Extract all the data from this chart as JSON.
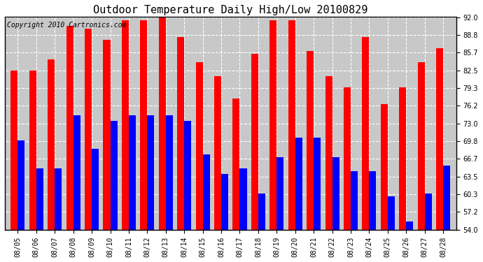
{
  "title": "Outdoor Temperature Daily High/Low 20100829",
  "copyright": "Copyright 2010 Cartronics.com",
  "dates": [
    "08/05",
    "08/06",
    "08/07",
    "08/08",
    "08/09",
    "08/10",
    "08/11",
    "08/12",
    "08/13",
    "08/14",
    "08/15",
    "08/16",
    "08/17",
    "08/18",
    "08/19",
    "08/20",
    "08/21",
    "08/22",
    "08/23",
    "08/24",
    "08/25",
    "08/26",
    "08/27",
    "08/28"
  ],
  "highs": [
    82.5,
    82.5,
    84.5,
    90.5,
    90.0,
    88.0,
    91.5,
    91.5,
    92.5,
    88.5,
    84.0,
    81.5,
    77.5,
    85.5,
    91.5,
    91.5,
    86.0,
    81.5,
    79.5,
    88.5,
    76.5,
    79.5,
    84.0,
    86.5
  ],
  "lows": [
    70.0,
    65.0,
    65.0,
    74.5,
    68.5,
    73.5,
    74.5,
    74.5,
    74.5,
    73.5,
    67.5,
    64.0,
    65.0,
    60.5,
    67.0,
    70.5,
    70.5,
    67.0,
    64.5,
    64.5,
    60.0,
    55.5,
    60.5,
    65.5
  ],
  "high_color": "#ff0000",
  "low_color": "#0000ff",
  "bg_color": "#ffffff",
  "plot_bg_color": "#c8c8c8",
  "grid_color": "#ffffff",
  "border_color": "#000000",
  "yticks": [
    54.0,
    57.2,
    60.3,
    63.5,
    66.7,
    69.8,
    73.0,
    76.2,
    79.3,
    82.5,
    85.7,
    88.8,
    92.0
  ],
  "ylim": [
    54.0,
    92.0
  ],
  "ybase": 54.0,
  "title_fontsize": 11,
  "tick_fontsize": 7,
  "copyright_fontsize": 7
}
